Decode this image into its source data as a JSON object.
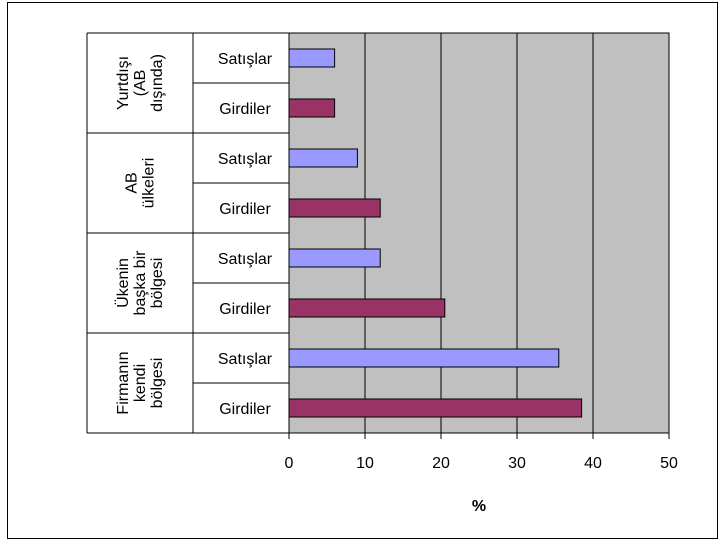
{
  "chart_data": {
    "type": "bar",
    "orientation": "horizontal",
    "xlabel": "%",
    "xlim": [
      0,
      50
    ],
    "xticks": [
      0,
      10,
      20,
      30,
      40,
      50
    ],
    "grid": true,
    "plot_background": "#c0c0c0",
    "colors": {
      "Satışlar": "#9999ff",
      "Girdiler": "#993366"
    },
    "groups": [
      {
        "label_lines": [
          "Yurtdışı",
          "(AB",
          "dışında)"
        ],
        "bars": [
          {
            "label": "Satışlar",
            "value": 6
          },
          {
            "label": "Girdiler",
            "value": 6
          }
        ]
      },
      {
        "label_lines": [
          "AB",
          "ülkeleri"
        ],
        "bars": [
          {
            "label": "Satışlar",
            "value": 9
          },
          {
            "label": "Girdiler",
            "value": 12
          }
        ]
      },
      {
        "label_lines": [
          "Ükenin",
          "başka bir",
          "bölgesi"
        ],
        "bars": [
          {
            "label": "Satışlar",
            "value": 12
          },
          {
            "label": "Girdiler",
            "value": 20.5
          }
        ]
      },
      {
        "label_lines": [
          "Firmanın",
          "kendi",
          "bölgesi"
        ],
        "bars": [
          {
            "label": "Satışlar",
            "value": 35.5
          },
          {
            "label": "Girdiler",
            "value": 38.5
          }
        ]
      }
    ]
  }
}
